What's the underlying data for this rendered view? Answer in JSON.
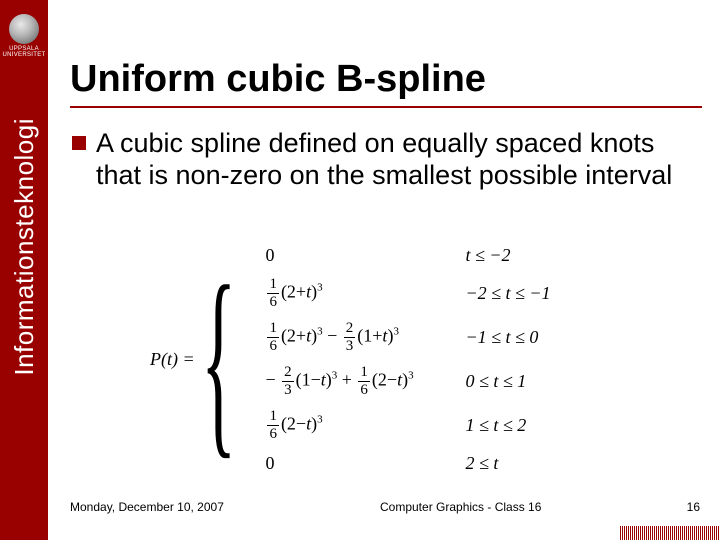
{
  "brand": {
    "name": "UPPSALA UNIVERSITET",
    "sidebar_label": "Informationsteknologi",
    "sidebar_bg": "#990000"
  },
  "slide": {
    "title": "Uniform cubic B-spline",
    "bullet": "A cubic spline defined on equally spaced knots that is non-zero on the smallest possible interval"
  },
  "formula": {
    "lhs": "P(t) =",
    "cases": [
      {
        "expr_html": "0",
        "cond": "t ≤ −2"
      },
      {
        "expr_html": "<span class='frac'><span class='num'>1</span><span class='den'>6</span></span>(2+<i>t</i>)<span class='sup'>3</span>",
        "cond": "−2 ≤ t ≤ −1"
      },
      {
        "expr_html": "<span class='frac'><span class='num'>1</span><span class='den'>6</span></span>(2+<i>t</i>)<span class='sup'>3</span> − <span class='frac'><span class='num'>2</span><span class='den'>3</span></span>(1+<i>t</i>)<span class='sup'>3</span>",
        "cond": "−1 ≤ t ≤ 0"
      },
      {
        "expr_html": "− <span class='frac'><span class='num'>2</span><span class='den'>3</span></span>(1−<i>t</i>)<span class='sup'>3</span> + <span class='frac'><span class='num'>1</span><span class='den'>6</span></span>(2−<i>t</i>)<span class='sup'>3</span>",
        "cond": "0 ≤ t ≤ 1"
      },
      {
        "expr_html": "<span class='frac'><span class='num'>1</span><span class='den'>6</span></span>(2−<i>t</i>)<span class='sup'>3</span>",
        "cond": "1 ≤ t ≤ 2"
      },
      {
        "expr_html": "0",
        "cond": "2 ≤ t"
      }
    ]
  },
  "footer": {
    "date": "Monday, December 10, 2007",
    "class": "Computer Graphics - Class 16",
    "page": "16"
  }
}
